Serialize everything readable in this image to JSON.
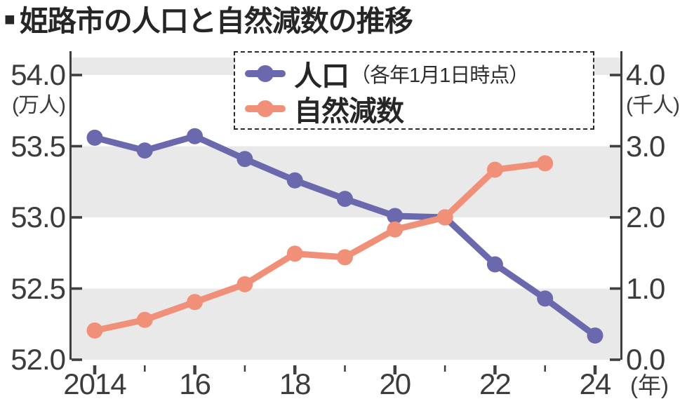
{
  "title_bullet": "■",
  "title": "姫路市の人口と自然減数の推移",
  "legend": {
    "population_label": "人口",
    "population_note": "（各年1月1日時点）",
    "natural_decrease_label": "自然減数"
  },
  "axes": {
    "left_unit": "(万人)",
    "right_unit": "(千人)",
    "x_unit": "(年)"
  },
  "colors": {
    "population_line": "#6b69ad",
    "natural_decrease_line": "#f19078",
    "band_gray": "#e9e9e9",
    "axis": "#3f3f3f",
    "label_text": "#3c3c3c"
  },
  "chart_data": {
    "type": "line",
    "title": "姫路市の人口と自然減数の推移",
    "grid": "alternating horizontal gray bands",
    "legend_position": "top-center, dashed box",
    "x_years": [
      2014,
      2015,
      2016,
      2017,
      2018,
      2019,
      2020,
      2021,
      2022,
      2023,
      2024
    ],
    "x_tick_labels": [
      "2014",
      "16",
      "18",
      "20",
      "22",
      "24"
    ],
    "x_labeled_years": [
      2014,
      2016,
      2018,
      2020,
      2022,
      2024
    ],
    "left_axis": {
      "tick_labels": [
        "54.0",
        "53.5",
        "53.0",
        "52.5",
        "52.0"
      ],
      "range": [
        52.0,
        54.0
      ],
      "unit": "万人"
    },
    "right_axis": {
      "tick_labels": [
        "4.0",
        "3.0",
        "2.0",
        "1.0",
        "0.0"
      ],
      "range": [
        0.0,
        4.0
      ],
      "unit": "千人"
    },
    "series": [
      {
        "name": "人口（各年1月1日時点）",
        "axis": "left",
        "unit": "万人",
        "color": "#6b69ad",
        "years": [
          2014,
          2015,
          2016,
          2017,
          2018,
          2019,
          2020,
          2021,
          2022,
          2023,
          2024
        ],
        "values": [
          53.56,
          53.47,
          53.57,
          53.41,
          53.26,
          53.13,
          53.01,
          53.0,
          52.67,
          52.43,
          52.17
        ]
      },
      {
        "name": "自然減数",
        "axis": "right",
        "unit": "千人",
        "color": "#f19078",
        "years": [
          2014,
          2015,
          2016,
          2017,
          2018,
          2019,
          2020,
          2021,
          2022,
          2023
        ],
        "values": [
          0.41,
          0.56,
          0.81,
          1.06,
          1.49,
          1.44,
          1.83,
          2.0,
          2.67,
          2.76
        ]
      }
    ]
  }
}
